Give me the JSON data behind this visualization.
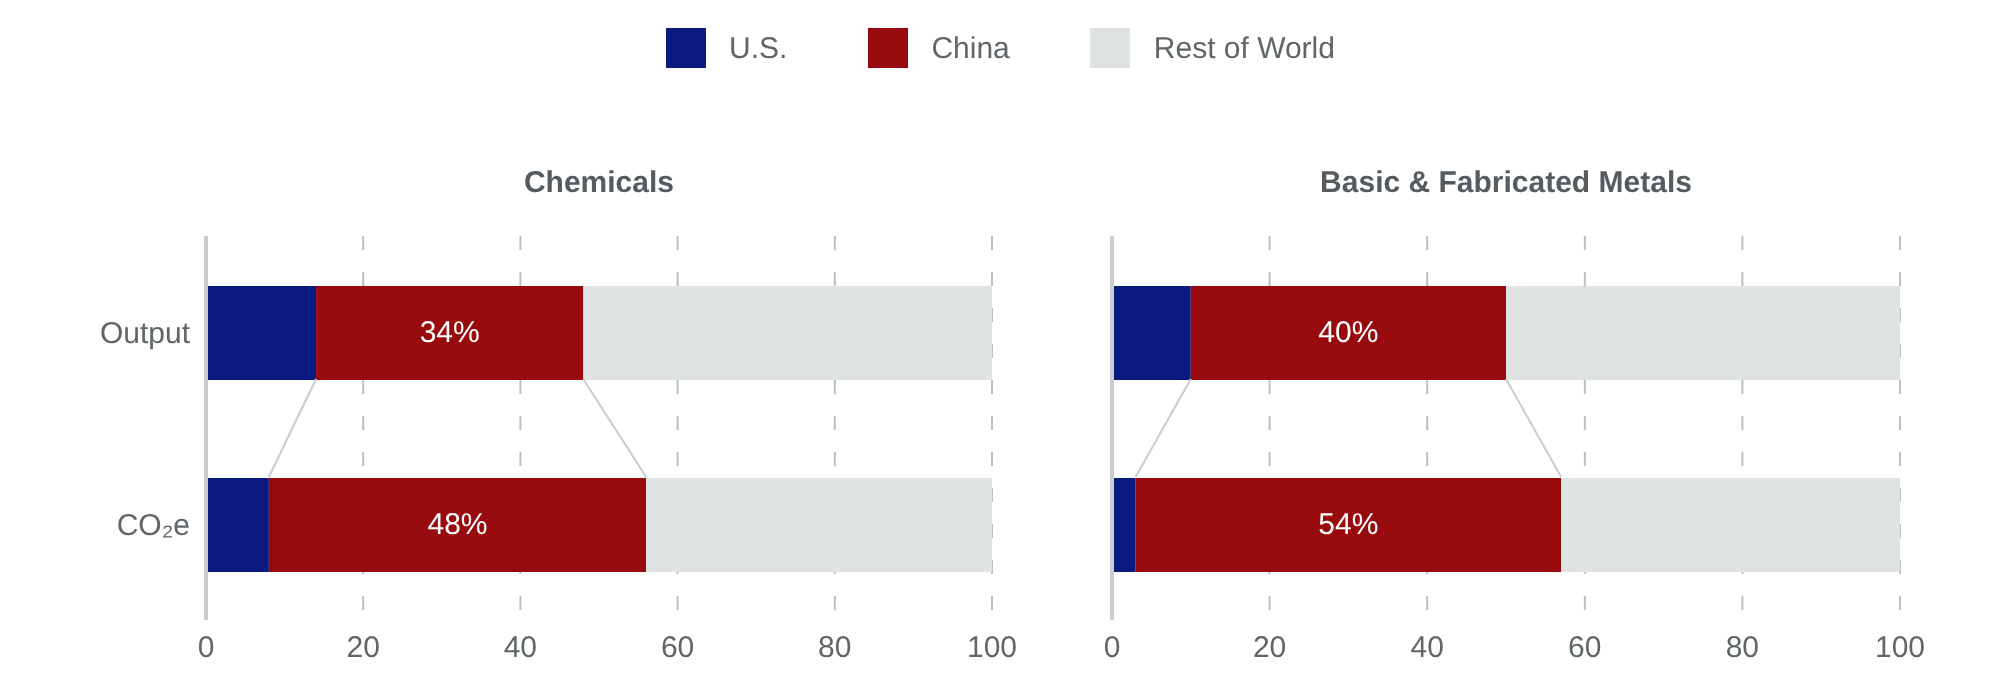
{
  "chart_data": [
    {
      "type": "bar",
      "orientation": "horizontal",
      "stacked": true,
      "title": "Chemicals",
      "categories": [
        "Output",
        "CO₂e"
      ],
      "series": [
        {
          "name": "U.S.",
          "color": "#0a1a80",
          "values": [
            14,
            8
          ]
        },
        {
          "name": "China",
          "color": "#990a0e",
          "values": [
            34,
            48
          ],
          "value_labels": [
            "34%",
            "48%"
          ]
        },
        {
          "name": "Rest of World",
          "color": "#dfe3e2",
          "values": [
            52,
            44
          ]
        }
      ],
      "xlim": [
        0,
        100
      ],
      "xticks": [
        0,
        20,
        40,
        60,
        80,
        100
      ],
      "grid": "x",
      "legend": "top"
    },
    {
      "type": "bar",
      "orientation": "horizontal",
      "stacked": true,
      "title": "Basic & Fabricated Metals",
      "categories": [
        null,
        null
      ],
      "series": [
        {
          "color": "#0a1a80",
          "values": [
            10,
            3
          ]
        },
        {
          "color": "#990a0e",
          "values": [
            40,
            54
          ],
          "value_labels": [
            "40%",
            "54%"
          ]
        },
        {
          "color": "#dfe3e2",
          "values": [
            50,
            43
          ]
        }
      ],
      "xlim": [
        0,
        100
      ],
      "xticks": [
        0,
        20,
        40,
        60,
        80,
        100
      ],
      "grid": "x",
      "tick_labels": "x"
    }
  ]
}
